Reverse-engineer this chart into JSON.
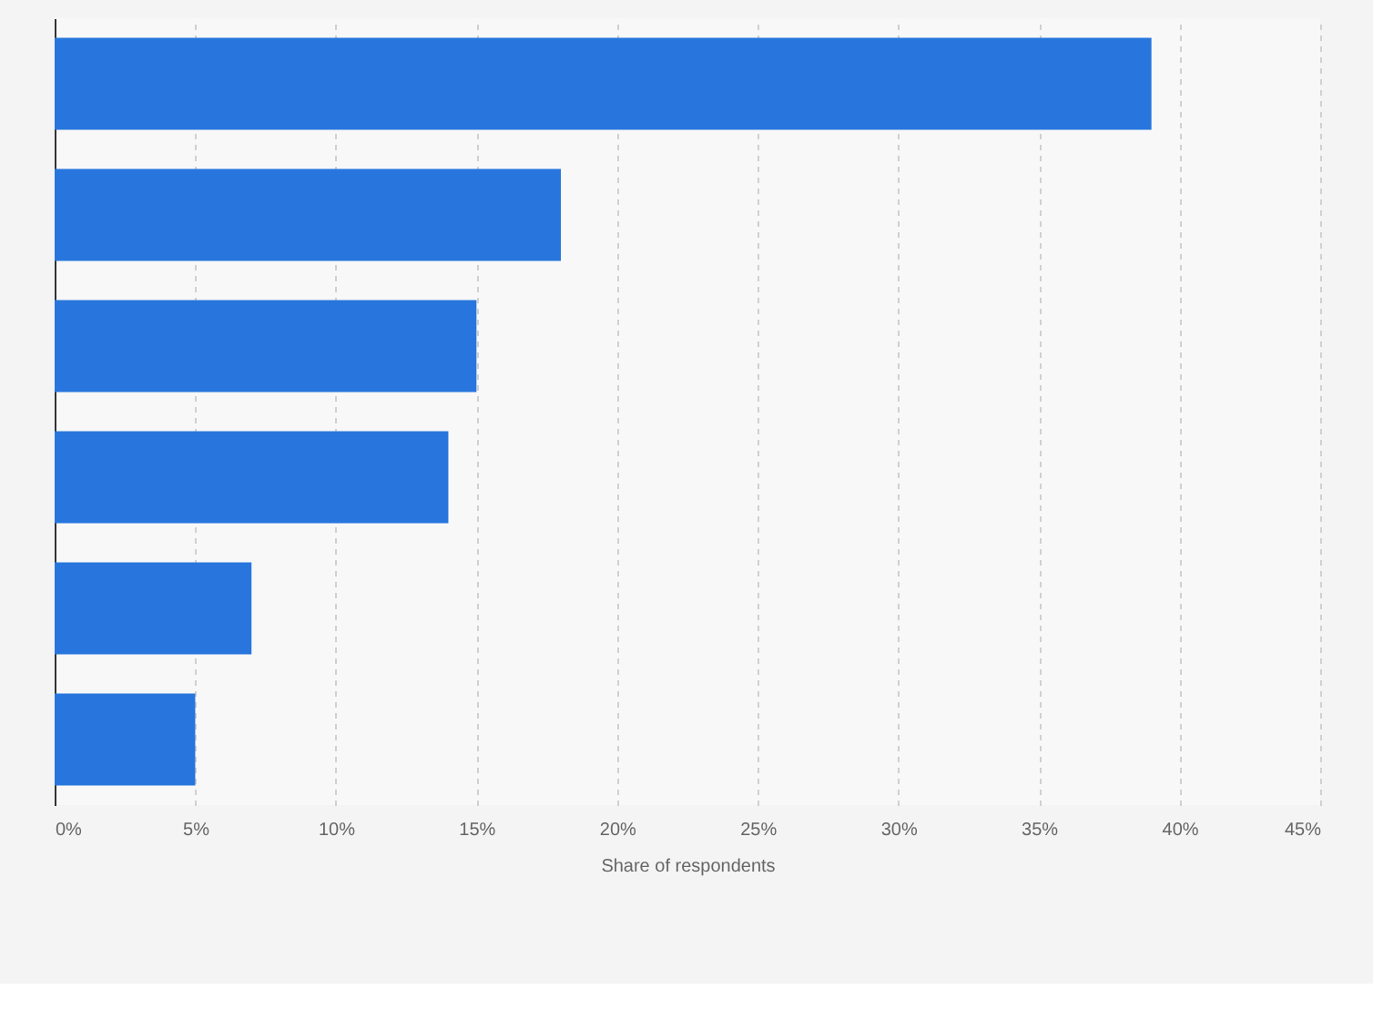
{
  "chart_data": {
    "type": "bar",
    "orientation": "horizontal",
    "xlabel": "Share of respondents",
    "categories": [
      null,
      null,
      null,
      null,
      null,
      null
    ],
    "values": [
      39,
      18,
      15,
      14,
      7,
      5
    ],
    "color": "#2876dd",
    "xlim": [
      0,
      45
    ],
    "xticks": [
      {
        "value": 0,
        "label": "0%"
      },
      {
        "value": 5,
        "label": "5%"
      },
      {
        "value": 10,
        "label": "10%"
      },
      {
        "value": 15,
        "label": "15%"
      },
      {
        "value": 20,
        "label": "20%"
      },
      {
        "value": 25,
        "label": "25%"
      },
      {
        "value": 30,
        "label": "30%"
      },
      {
        "value": 35,
        "label": "35%"
      },
      {
        "value": 40,
        "label": "40%"
      },
      {
        "value": 45,
        "label": "45%"
      }
    ],
    "grid": "x"
  }
}
